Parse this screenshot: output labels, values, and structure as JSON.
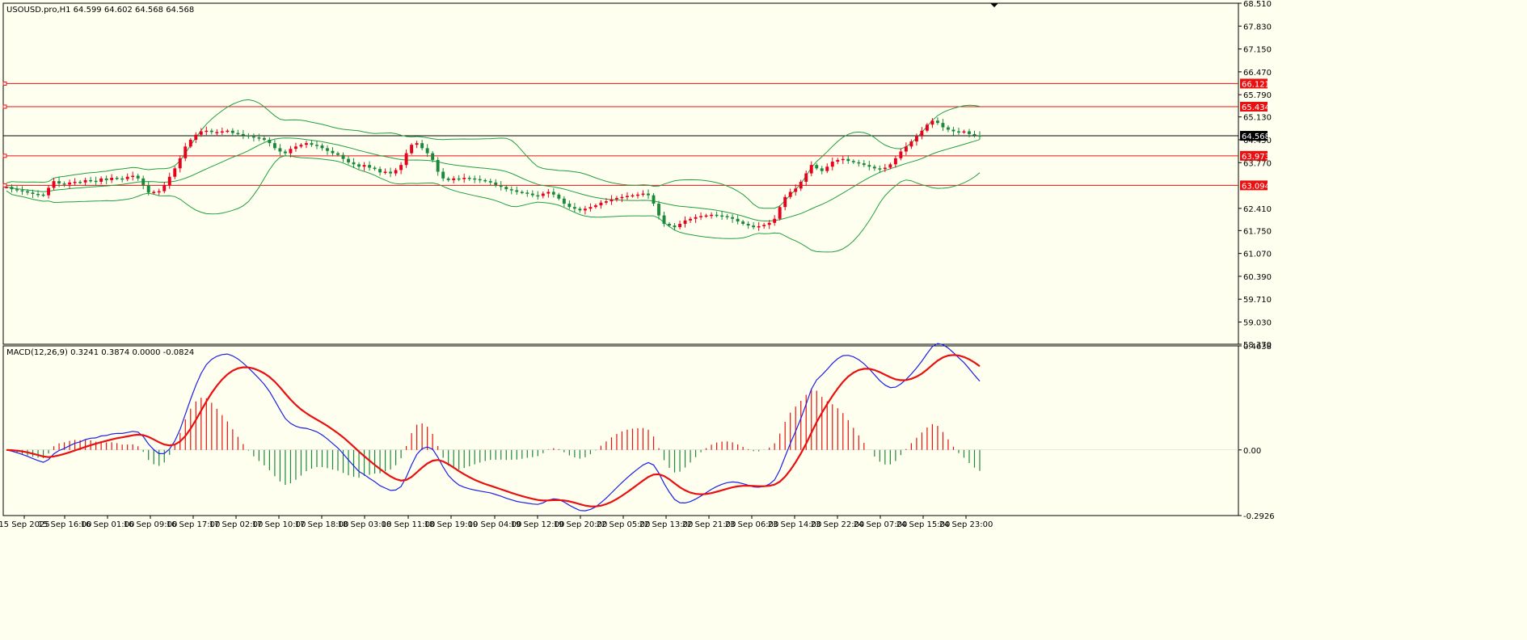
{
  "symbol_header": "USOUSD.pro,H1  64.599 64.602 64.568 64.568",
  "macd_header": "MACD(12,26,9) 0.3241 0.3874 0.0000 -0.0824",
  "colors": {
    "background": "#fffff0",
    "bull_candle": "#e8001c",
    "bear_candle": "#1a8a3a",
    "bollinger": "#20a040",
    "macd_line": "#1e1ee8",
    "signal_line": "#e81010",
    "level_line": "#e81010",
    "price_line": "#000000",
    "hist_pos": "#e81010",
    "hist_neg": "#1a8a3a"
  },
  "chart_data": [
    {
      "type": "candlestick",
      "title": "USOUSD.pro,H1",
      "ylim": [
        58.37,
        68.51
      ],
      "y_ticks": [
        "68.510",
        "67.830",
        "67.150",
        "66.470",
        "65.790",
        "65.130",
        "64.450",
        "63.770",
        "62.410",
        "61.750",
        "61.070",
        "60.390",
        "59.710",
        "59.030",
        "58.370"
      ],
      "x_ticks": [
        "15 Sep 2025",
        "15 Sep 16:00",
        "16 Sep 01:00",
        "16 Sep 09:00",
        "16 Sep 17:00",
        "17 Sep 02:00",
        "17 Sep 10:00",
        "17 Sep 18:00",
        "18 Sep 03:00",
        "18 Sep 11:00",
        "18 Sep 19:00",
        "19 Sep 04:00",
        "19 Sep 12:00",
        "19 Sep 20:00",
        "22 Sep 05:00",
        "22 Sep 13:00",
        "22 Sep 21:00",
        "23 Sep 06:00",
        "23 Sep 14:00",
        "23 Sep 22:00",
        "24 Sep 07:00",
        "24 Sep 15:00",
        "24 Sep 23:00"
      ],
      "current_price": 64.568,
      "current_price_label": "64.568",
      "levels": [
        {
          "value": 66.121,
          "label": "66.121"
        },
        {
          "value": 65.434,
          "label": "65.434"
        },
        {
          "value": 63.973,
          "label": "63.973"
        },
        {
          "value": 63.094,
          "label": "63.094"
        }
      ],
      "close": [
        63.05,
        62.98,
        62.95,
        62.92,
        62.88,
        62.84,
        62.82,
        62.8,
        63.02,
        63.22,
        63.15,
        63.12,
        63.18,
        63.2,
        63.18,
        63.25,
        63.23,
        63.2,
        63.3,
        63.25,
        63.32,
        63.3,
        63.28,
        63.35,
        63.38,
        63.3,
        63.1,
        62.88,
        62.9,
        62.92,
        63.1,
        63.35,
        63.6,
        63.9,
        64.25,
        64.45,
        64.6,
        64.7,
        64.72,
        64.68,
        64.68,
        64.7,
        64.72,
        64.65,
        64.62,
        64.58,
        64.55,
        64.52,
        64.5,
        64.45,
        64.35,
        64.2,
        64.1,
        64.05,
        64.18,
        64.25,
        64.3,
        64.35,
        64.3,
        64.28,
        64.2,
        64.12,
        64.05,
        64.0,
        63.88,
        63.78,
        63.72,
        63.65,
        63.7,
        63.62,
        63.58,
        63.48,
        63.5,
        63.45,
        63.55,
        63.7,
        64.05,
        64.3,
        64.35,
        64.2,
        64.05,
        63.85,
        63.5,
        63.3,
        63.25,
        63.3,
        63.28,
        63.32,
        63.3,
        63.28,
        63.25,
        63.22,
        63.18,
        63.1,
        63.05,
        62.98,
        62.95,
        62.9,
        62.88,
        62.85,
        62.8,
        62.78,
        62.85,
        62.9,
        62.82,
        62.7,
        62.55,
        62.45,
        62.4,
        62.35,
        62.4,
        62.45,
        62.5,
        62.58,
        62.62,
        62.68,
        62.72,
        62.75,
        62.78,
        62.8,
        62.82,
        62.85,
        62.8,
        62.55,
        62.2,
        61.95,
        61.9,
        61.85,
        61.95,
        62.05,
        62.1,
        62.15,
        62.18,
        62.2,
        62.22,
        62.2,
        62.18,
        62.15,
        62.1,
        62.02,
        61.95,
        61.9,
        61.85,
        61.88,
        61.92,
        61.98,
        62.1,
        62.45,
        62.75,
        62.9,
        63.0,
        63.2,
        63.45,
        63.7,
        63.6,
        63.52,
        63.65,
        63.8,
        63.85,
        63.88,
        63.82,
        63.78,
        63.75,
        63.7,
        63.65,
        63.6,
        63.58,
        63.62,
        63.72,
        63.9,
        64.1,
        64.25,
        64.4,
        64.55,
        64.72,
        64.9,
        65.02,
        64.95,
        64.82,
        64.75,
        64.7,
        64.68,
        64.7,
        64.62,
        64.58,
        64.57
      ]
    },
    {
      "type": "macd",
      "title": "MACD(12,26,9)",
      "ylim": [
        -0.2926,
        0.4638
      ],
      "y_ticks": [
        "0.4638",
        "0.00",
        "-0.2926"
      ],
      "macd_value": 0.3241,
      "signal_value": 0.3874,
      "histogram_value": -0.0824
    }
  ]
}
